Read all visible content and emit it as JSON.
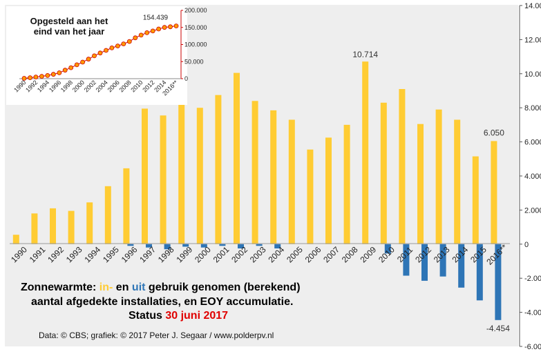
{
  "chart_data": [
    {
      "type": "bar",
      "categories": [
        "1990",
        "1991",
        "1992",
        "1993",
        "1994",
        "1995",
        "1996",
        "1997",
        "1998",
        "1999",
        "2000",
        "2001",
        "2002",
        "2003",
        "2004",
        "2005",
        "2006",
        "2007",
        "2008",
        "2009",
        "2010",
        "2011",
        "2012",
        "2013",
        "2014",
        "2015",
        "2016**"
      ],
      "series": [
        {
          "name": "in-",
          "color": "#FFCC33",
          "values": [
            550,
            1800,
            2100,
            1950,
            2450,
            3400,
            4450,
            7950,
            7550,
            8600,
            8000,
            8750,
            10050,
            8400,
            7850,
            7300,
            5550,
            6250,
            7000,
            10714,
            8300,
            9100,
            7050,
            7900,
            7300,
            5150,
            6050
          ]
        },
        {
          "name": "uit",
          "color": "#2E75B6",
          "values": [
            0,
            0,
            0,
            0,
            0,
            0,
            -100,
            -200,
            -300,
            -150,
            -200,
            -100,
            -250,
            -100,
            -250,
            0,
            0,
            0,
            0,
            0,
            -550,
            -1850,
            -2150,
            -1900,
            -2550,
            -3300,
            -4454
          ]
        }
      ],
      "ylim": [
        -6000,
        14000
      ],
      "yticks": [
        "-6.000",
        "-4.000",
        "-2.000",
        "0",
        "2.000",
        "4.000",
        "6.000",
        "8.000",
        "10.000",
        "12.000",
        "14.000"
      ],
      "yaxis_position": "right",
      "grid": false,
      "annotations": [
        {
          "category": "2009",
          "text": "10.714"
        },
        {
          "category": "2016**",
          "text": "6.050"
        },
        {
          "category": "2016**",
          "text": "-4.454"
        }
      ],
      "title_lines": [
        [
          {
            "text": "Zonnewarmte: ",
            "color": "#000000"
          },
          {
            "text": "in-",
            "color": "#FFCC33"
          },
          {
            "text": " en ",
            "color": "#000000"
          },
          {
            "text": "uit",
            "color": "#2E75B6"
          },
          {
            "text": " gebruik genomen (berekend)",
            "color": "#000000"
          }
        ],
        [
          {
            "text": "aantal afgedekte installaties, en EOY accumulatie.",
            "color": "#000000"
          }
        ],
        [
          {
            "text": "Status ",
            "color": "#000000"
          },
          {
            "text": "30 juni 2017",
            "color": "#E00000"
          }
        ]
      ],
      "source": "Data: © CBS; grafiek: © 2017 Peter J. Segaar / www.polderpv.nl"
    },
    {
      "type": "line",
      "title_lines": [
        "Opgesteld aan het",
        "eind van het jaar"
      ],
      "x": [
        "1990",
        "1991",
        "1992",
        "1993",
        "1994",
        "1995",
        "1996",
        "1997",
        "1998",
        "1999",
        "2000",
        "2001",
        "2002",
        "2003",
        "2004",
        "2005",
        "2006",
        "2007",
        "2008",
        "2009",
        "2010",
        "2011",
        "2012",
        "2013",
        "2014",
        "2015",
        "2016**"
      ],
      "xticks": [
        "1990",
        "1992",
        "1994",
        "1996",
        "1998",
        "2000",
        "2002",
        "2004",
        "2006",
        "2008",
        "2010",
        "2012",
        "2014",
        "2016**"
      ],
      "values": [
        1000,
        2800,
        4900,
        6850,
        9300,
        12700,
        17100,
        24900,
        32200,
        40600,
        48500,
        57100,
        66900,
        75200,
        82800,
        90100,
        95700,
        101900,
        108900,
        119600,
        127400,
        134600,
        139500,
        145500,
        150200,
        152000,
        154439
      ],
      "ylim": [
        0,
        200000
      ],
      "yticks": [
        "0",
        "50.000",
        "100.000",
        "150.000",
        "200.000"
      ],
      "yaxis_position": "right",
      "yaxis_color": "#CC0000",
      "marker_color": "#FF9900",
      "marker_edge": "#CC0000",
      "annotation": "154.439"
    }
  ]
}
